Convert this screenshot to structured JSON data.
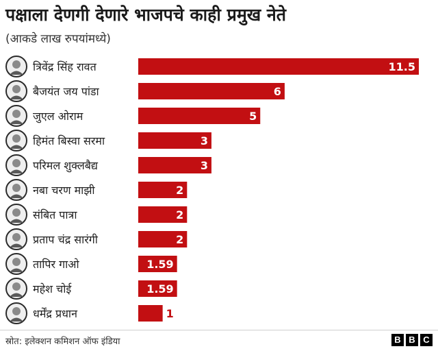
{
  "title": "पक्षाला देणगी देणारे भाजपचे काही प्रमुख नेते",
  "subtitle": "(आकडे लाख रुपयांमध्ये)",
  "source": "स्रोत: इलेक्शन कमिशन ऑफ इंडिया",
  "brand": [
    "B",
    "B",
    "C"
  ],
  "colors": {
    "bar": "#c20f12",
    "label_inside": "#ffffff",
    "label_outside": "#c20f12"
  },
  "chart_data": {
    "type": "bar",
    "orientation": "horizontal",
    "categories": [
      "त्रिवेंद्र सिंह रावत",
      "बैजयंत जय पांडा",
      "जुएल ओराम",
      "हिमंत बिस्वा सरमा",
      "परिमल शुक्लबैद्य",
      "नबा चरण माझी",
      "संबित पात्रा",
      "प्रताप चंद्र सारंगी",
      "तापिर गाओ",
      "महेश चोई",
      "धर्मेंद्र प्रधान"
    ],
    "values": [
      11.5,
      6,
      5,
      3,
      3,
      2,
      2,
      2,
      1.59,
      1.59,
      1
    ],
    "value_labels": [
      "11.5",
      "6",
      "5",
      "3",
      "3",
      "2",
      "2",
      "2",
      "1.59",
      "1.59",
      "1"
    ],
    "xlim": [
      0,
      11.5
    ],
    "grid": false,
    "legend": "none"
  }
}
